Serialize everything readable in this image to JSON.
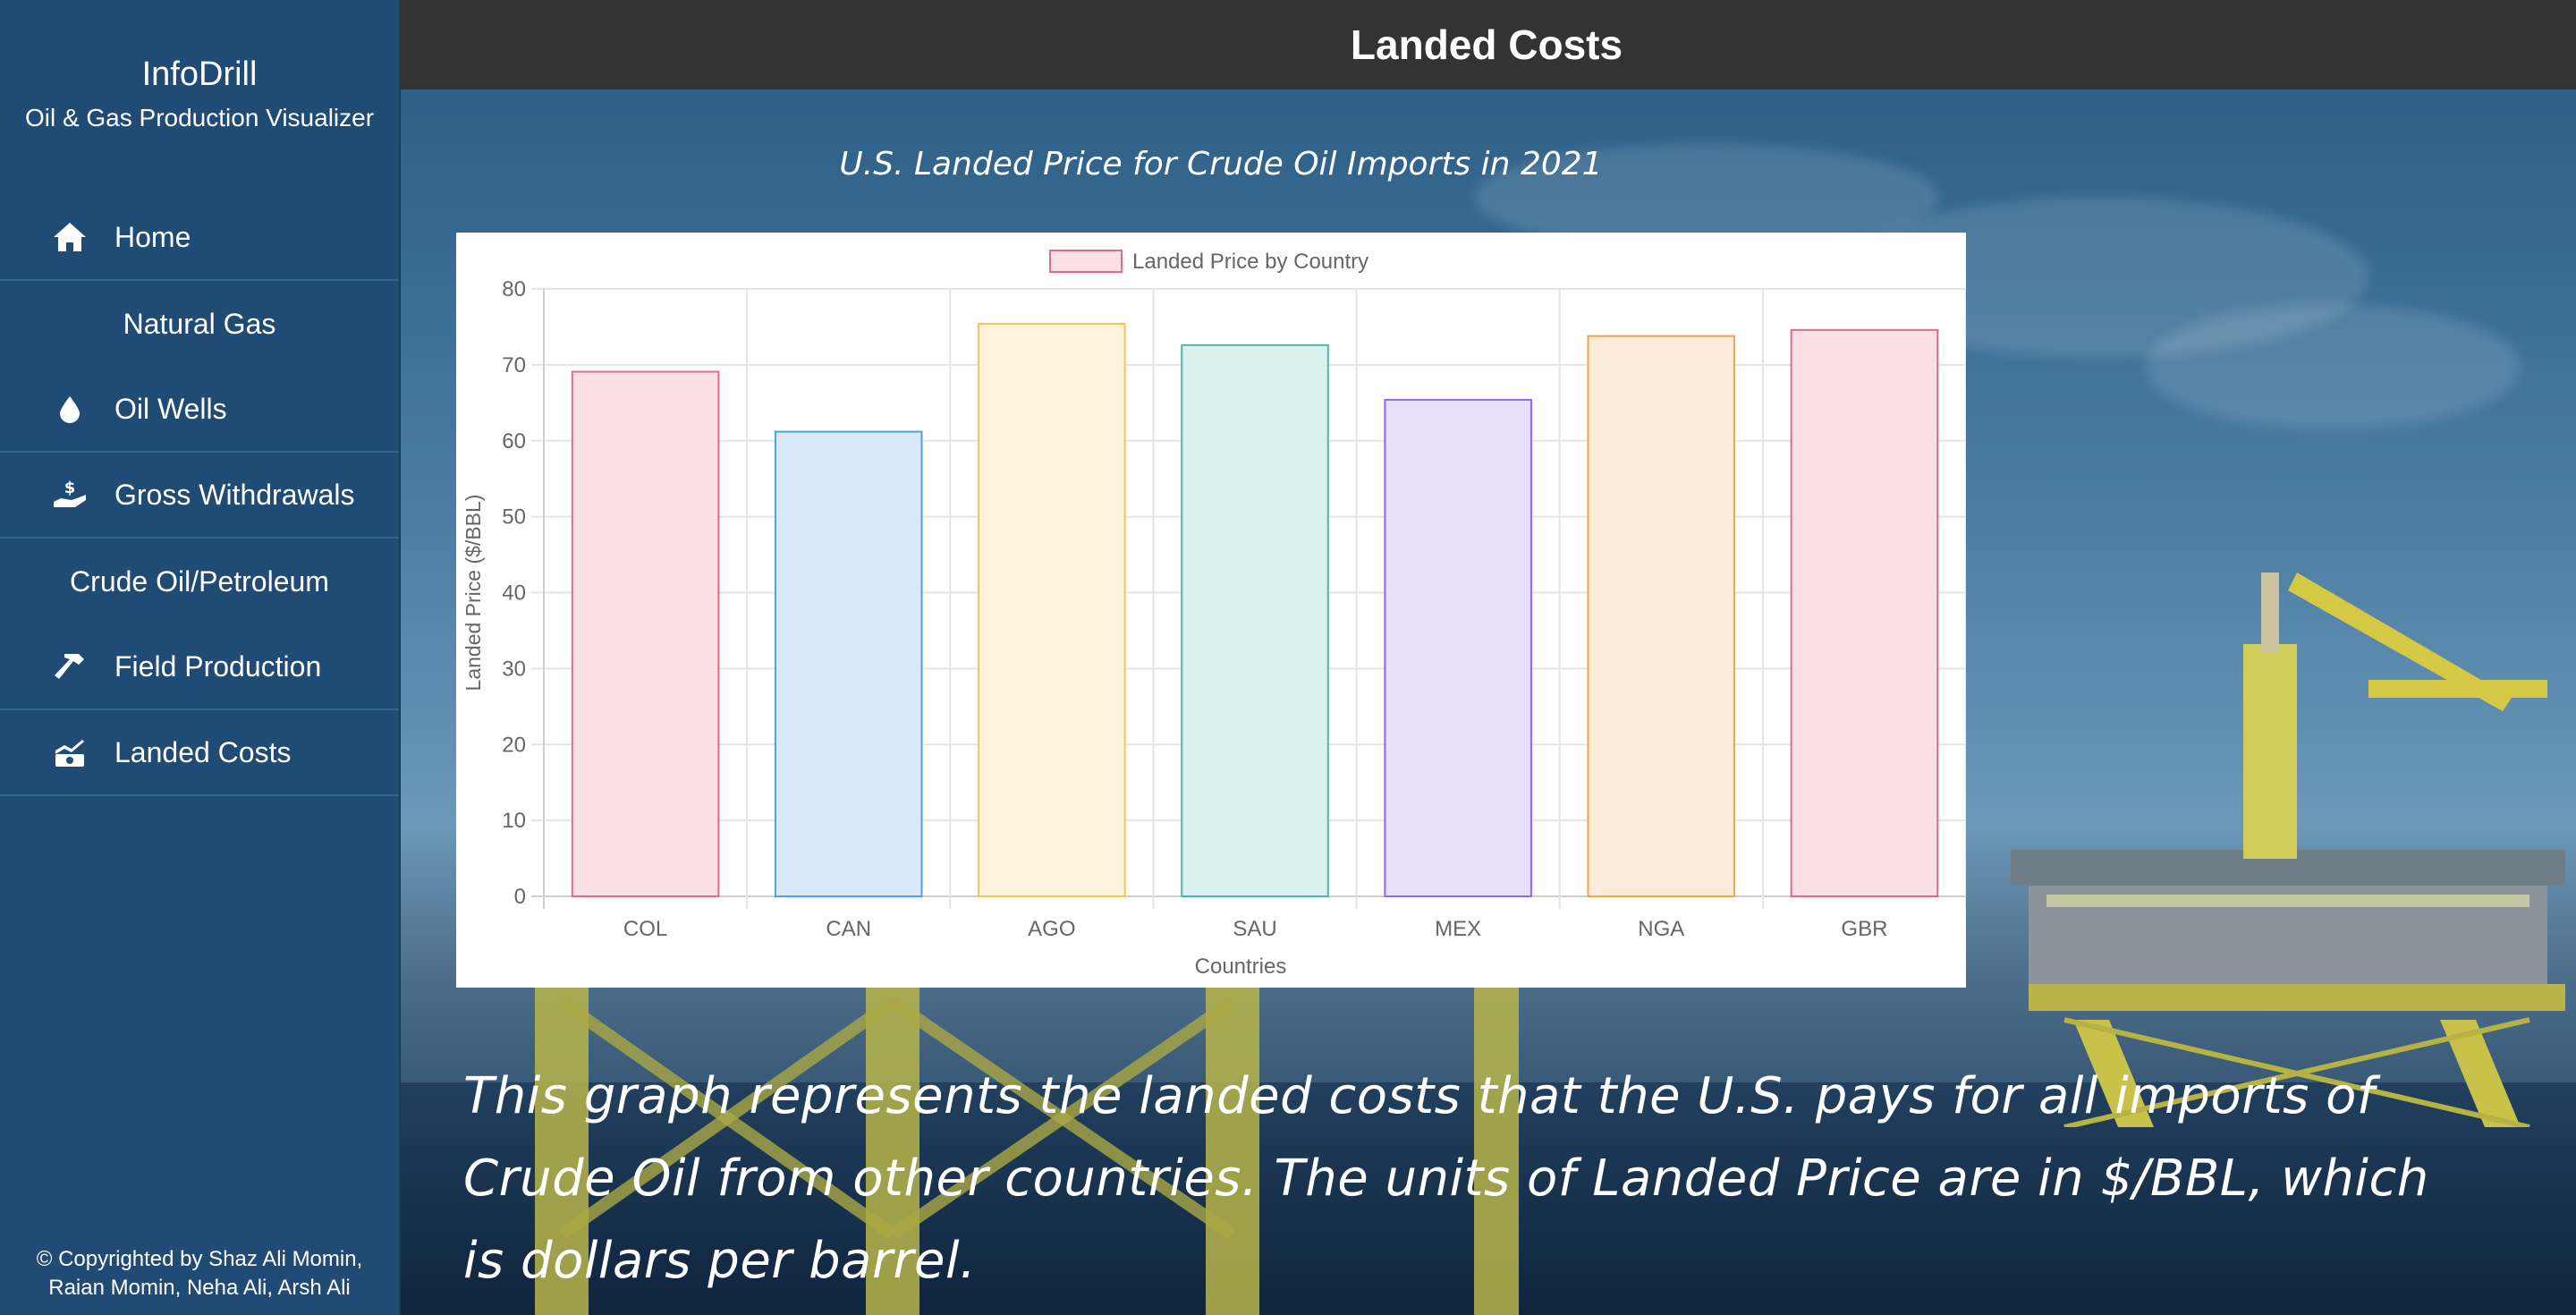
{
  "header": {
    "title": "Landed Costs"
  },
  "sidebar": {
    "brand_name": "InfoDrill",
    "brand_sub": "Oil & Gas Production Visualizer",
    "items": [
      {
        "type": "link",
        "label": "Home",
        "icon": "home-icon"
      },
      {
        "type": "heading",
        "label": "Natural Gas"
      },
      {
        "type": "link",
        "label": "Oil Wells",
        "icon": "droplet-icon"
      },
      {
        "type": "link",
        "label": "Gross Withdrawals",
        "icon": "hand-dollar-icon"
      },
      {
        "type": "heading",
        "label": "Crude Oil/Petroleum"
      },
      {
        "type": "link",
        "label": "Field Production",
        "icon": "hammer-icon"
      },
      {
        "type": "link",
        "label": "Landed Costs",
        "icon": "money-chart-icon"
      }
    ],
    "copyright_line1": "© Copyrighted by Shaz Ali Momin,",
    "copyright_line2": "Raian Momin, Neha Ali, Arsh Ali"
  },
  "chart_heading": "U.S. Landed Price for Crude Oil Imports in 2021",
  "description": "This graph represents the landed costs that the U.S. pays for all imports of Crude Oil from other countries. The units of Landed Price are in $/BBL, which is dollars per barrel.",
  "chart_data": {
    "type": "bar",
    "title": "",
    "legend": "Landed Price by Country",
    "categories": [
      "COL",
      "CAN",
      "AGO",
      "SAU",
      "MEX",
      "NGA",
      "GBR"
    ],
    "values": [
      69.1,
      61.2,
      75.4,
      72.6,
      65.4,
      73.8,
      74.6
    ],
    "xlabel": "Countries",
    "ylabel": "Landed Price ($/BBL)",
    "ylim": [
      0,
      80
    ],
    "yticks": [
      0,
      10,
      20,
      30,
      40,
      50,
      60,
      70,
      80
    ],
    "fill_colors": [
      "#fbe1e7",
      "#d9e9f9",
      "#fdf3dd",
      "#dbf1ef",
      "#e6e0fb",
      "#fdebd9",
      "#fbe1e7"
    ],
    "border_colors": [
      "#e16b86",
      "#4ea1e4",
      "#f3c651",
      "#4cb7ac",
      "#9165f5",
      "#f2a34e",
      "#e16b86"
    ],
    "legend_fill": "#fbe1e7",
    "legend_border": "#e16b86",
    "grid": true
  }
}
